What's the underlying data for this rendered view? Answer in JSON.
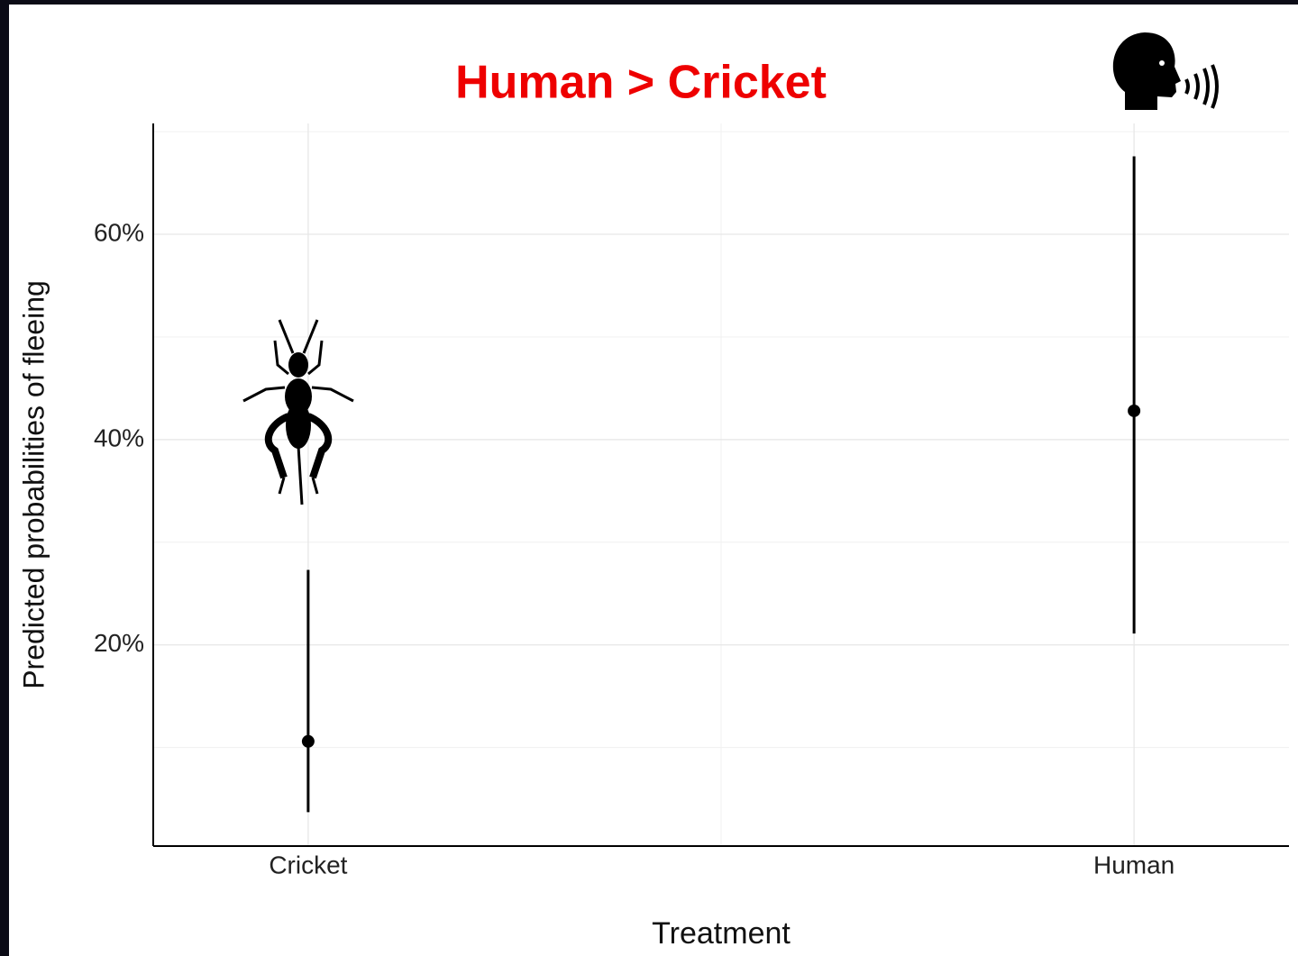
{
  "chart_data": {
    "type": "pointrange",
    "title": "Human > Cricket",
    "x_label": "Treatment",
    "y_label": "Predicted probabilities of fleeing",
    "categories": [
      "Cricket",
      "Human"
    ],
    "series": [
      {
        "color": "#000000",
        "values": [
          10.6,
          42.8
        ],
        "lower": [
          3.7,
          21.1
        ],
        "upper": [
          27.3,
          67.6
        ]
      }
    ],
    "ylim": [
      0.4,
      70.8
    ],
    "yticks": [
      {
        "value": 20,
        "label": "20%"
      },
      {
        "value": 40,
        "label": "40%"
      },
      {
        "value": 60,
        "label": "60%"
      }
    ],
    "minor_yticks": [
      10,
      30,
      50,
      70
    ],
    "grid": true
  }
}
